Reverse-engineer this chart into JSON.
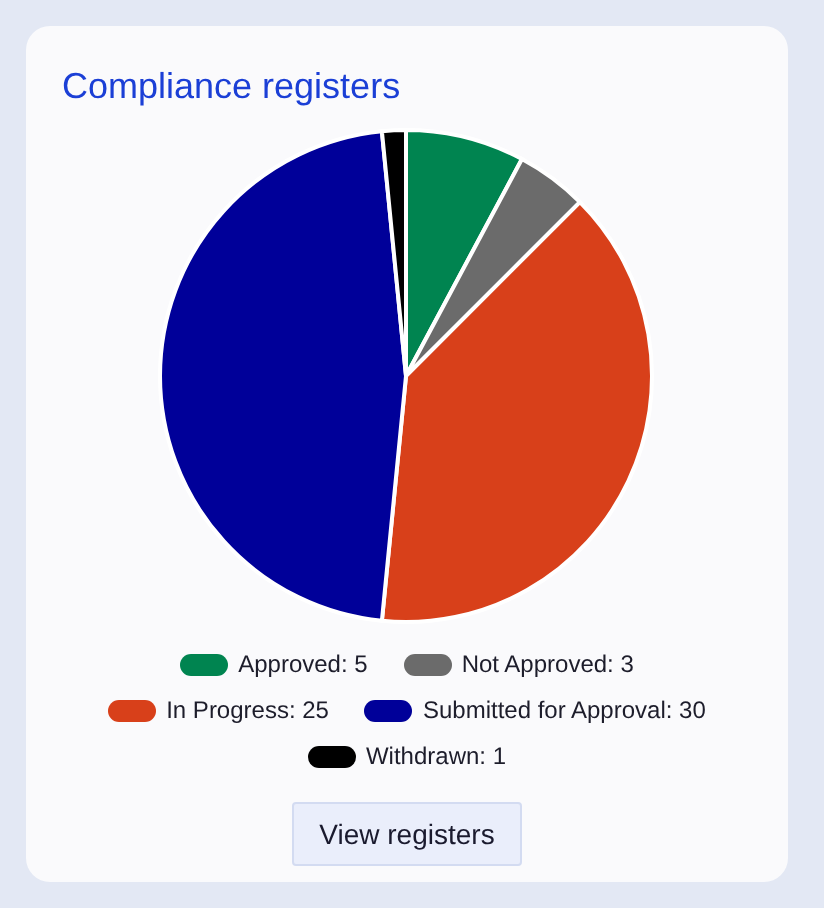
{
  "chart_data": {
    "type": "pie",
    "title": "Compliance registers",
    "categories": [
      "Approved: 5",
      "Not Approved: 3",
      "In Progress: 25",
      "Submitted for Approval: 30",
      "Withdrawn: 1"
    ],
    "values": [
      5,
      3,
      25,
      30,
      1
    ],
    "colors": [
      "#008450",
      "#6b6b6b",
      "#d8401a",
      "#000099",
      "#000000"
    ],
    "legend": "bottom",
    "annotations": [
      "View registers"
    ]
  }
}
